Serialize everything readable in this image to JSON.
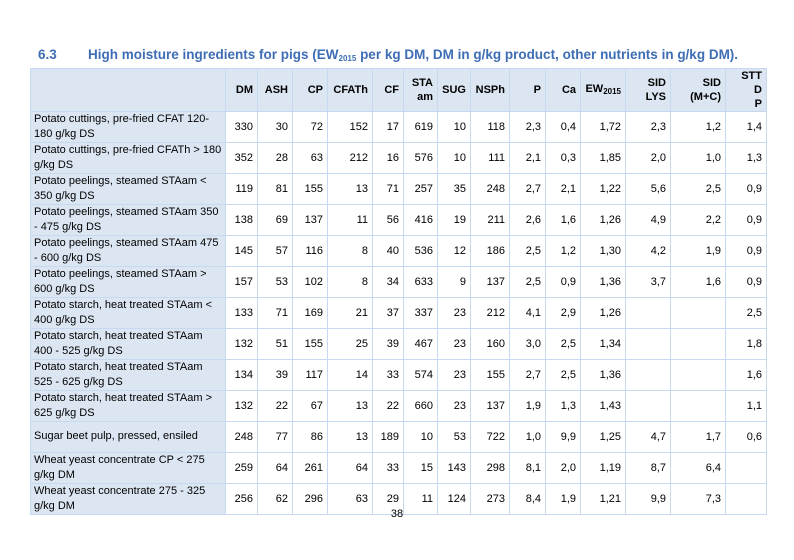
{
  "title": {
    "number": "6.3",
    "text": "High moisture ingredients for pigs (EW",
    "subscript": "2015",
    "text_after": " per kg DM, DM in g/kg product, other nutrients in g/kg DM)."
  },
  "table": {
    "header": [
      "DM",
      "ASH",
      "CP",
      "CFATh",
      "CF",
      "STA am",
      "SUG",
      "NSPh",
      "P",
      "Ca",
      {
        "text": "EW",
        "sub": "2015"
      },
      "SID LYS",
      "SID (M+C)",
      "STT D P"
    ],
    "rows": [
      [
        "Potato cuttings, pre-fried CFAT 120-180 g/kg DS",
        330,
        30,
        72,
        152,
        17,
        619,
        10,
        118,
        "2,3",
        "0,4",
        "1,72",
        "2,3",
        "1,2",
        "1,4"
      ],
      [
        "Potato cuttings, pre-fried CFATh > 180 g/kg DS",
        352,
        28,
        63,
        212,
        16,
        576,
        10,
        111,
        "2,1",
        "0,3",
        "1,85",
        "2,0",
        "1,0",
        "1,3"
      ],
      [
        "Potato peelings, steamed STAam < 350 g/kg DS",
        119,
        81,
        155,
        13,
        71,
        257,
        35,
        248,
        "2,7",
        "2,1",
        "1,22",
        "5,6",
        "2,5",
        "0,9"
      ],
      [
        "Potato peelings, steamed STAam 350 - 475 g/kg DS",
        138,
        69,
        137,
        11,
        56,
        416,
        19,
        211,
        "2,6",
        "1,6",
        "1,26",
        "4,9",
        "2,2",
        "0,9"
      ],
      [
        "Potato peelings, steamed STAam 475 - 600 g/kg DS",
        145,
        57,
        116,
        8,
        40,
        536,
        12,
        186,
        "2,5",
        "1,2",
        "1,30",
        "4,2",
        "1,9",
        "0,9"
      ],
      [
        "Potato peelings, steamed STAam > 600 g/kg DS",
        157,
        53,
        102,
        8,
        34,
        633,
        9,
        137,
        "2,5",
        "0,9",
        "1,36",
        "3,7",
        "1,6",
        "0,9"
      ],
      [
        "Potato starch, heat treated STAam < 400 g/kg DS",
        133,
        71,
        169,
        21,
        37,
        337,
        23,
        212,
        "4,1",
        "2,9",
        "1,26",
        null,
        null,
        "2,5"
      ],
      [
        "Potato starch, heat treated STAam 400 - 525 g/kg DS",
        132,
        51,
        155,
        25,
        39,
        467,
        23,
        160,
        "3,0",
        "2,5",
        "1,34",
        null,
        null,
        "1,8"
      ],
      [
        "Potato starch, heat treated STAam 525 - 625 g/kg DS",
        134,
        39,
        117,
        14,
        33,
        574,
        23,
        155,
        "2,7",
        "2,5",
        "1,36",
        null,
        null,
        "1,6"
      ],
      [
        "Potato starch, heat treated STAam > 625 g/kg DS",
        132,
        22,
        67,
        13,
        22,
        660,
        23,
        137,
        "1,9",
        "1,3",
        "1,43",
        null,
        null,
        "1,1"
      ],
      [
        "Sugar beet pulp, pressed, ensiled",
        248,
        77,
        86,
        13,
        189,
        10,
        53,
        722,
        "1,0",
        "9,9",
        "1,25",
        "4,7",
        "1,7",
        "0,6"
      ],
      [
        "Wheat yeast concentrate CP < 275 g/kg DM",
        259,
        64,
        261,
        64,
        33,
        15,
        143,
        298,
        "8,1",
        "2,0",
        "1,19",
        "8,7",
        "6,4",
        null
      ],
      [
        "Wheat yeast concentrate 275 - 325 g/kg DM",
        256,
        62,
        296,
        63,
        29,
        11,
        124,
        273,
        "8,4",
        "1,9",
        "1,21",
        "9,9",
        "7,3",
        null
      ]
    ]
  },
  "page_number": "38"
}
